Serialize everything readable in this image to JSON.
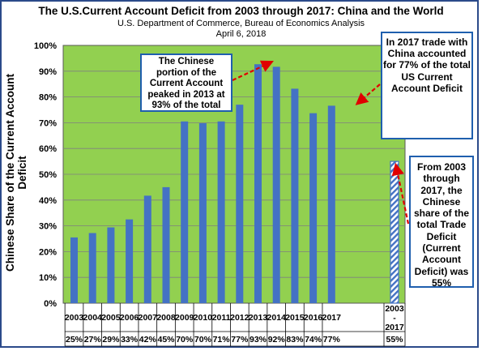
{
  "titles": {
    "main": "The U.S.Current Account Deficit from 2003 through 2017: China and the World",
    "sub1": "U.S. Department of Commerce, Bureau of Economics Analysis",
    "sub2": "April 6, 2018"
  },
  "callouts": {
    "peak": "The Chinese portion of the Current Account peaked in 2013 at 93% of the total",
    "y2017": "In 2017 trade with China accounted for 77% of the total US Current Account Deficit",
    "overall": "From 2003 through 2017, the Chinese share of the total Trade Deficit (Current Account Deficit) was 55%"
  },
  "colors": {
    "plot_background": "#92d050",
    "bar": "#4472c4",
    "gridline": "#7f7f7f",
    "callout_border": "#1f5fae",
    "arrow": "#e00000"
  },
  "chart_data": {
    "type": "bar",
    "title": "The U.S.Current Account Deficit from 2003 through 2017: China and the World",
    "ylabel": "Chinese Share of the Current Account Deficit",
    "xlabel": "",
    "ylim": [
      0,
      100
    ],
    "yticks": [
      "0%",
      "10%",
      "20%",
      "30%",
      "40%",
      "50%",
      "60%",
      "70%",
      "80%",
      "90%",
      "100%"
    ],
    "grid": true,
    "categories": [
      "2003",
      "2004",
      "2005",
      "2006",
      "2007",
      "2008",
      "2009",
      "2010",
      "2011",
      "2012",
      "2013",
      "2014",
      "2015",
      "2016",
      "2017",
      "2003 - 2017"
    ],
    "values": [
      25.5,
      27.2,
      29.4,
      32.5,
      41.7,
      45.0,
      70.5,
      69.8,
      70.5,
      77.0,
      92.7,
      91.7,
      83.2,
      73.7,
      76.6,
      55.0
    ],
    "table_values": [
      "25%",
      "27%",
      "29%",
      "33%",
      "42%",
      "45%",
      "70%",
      "70%",
      "71%",
      "77%",
      "93%",
      "92%",
      "83%",
      "74%",
      "77%",
      "55%"
    ]
  }
}
